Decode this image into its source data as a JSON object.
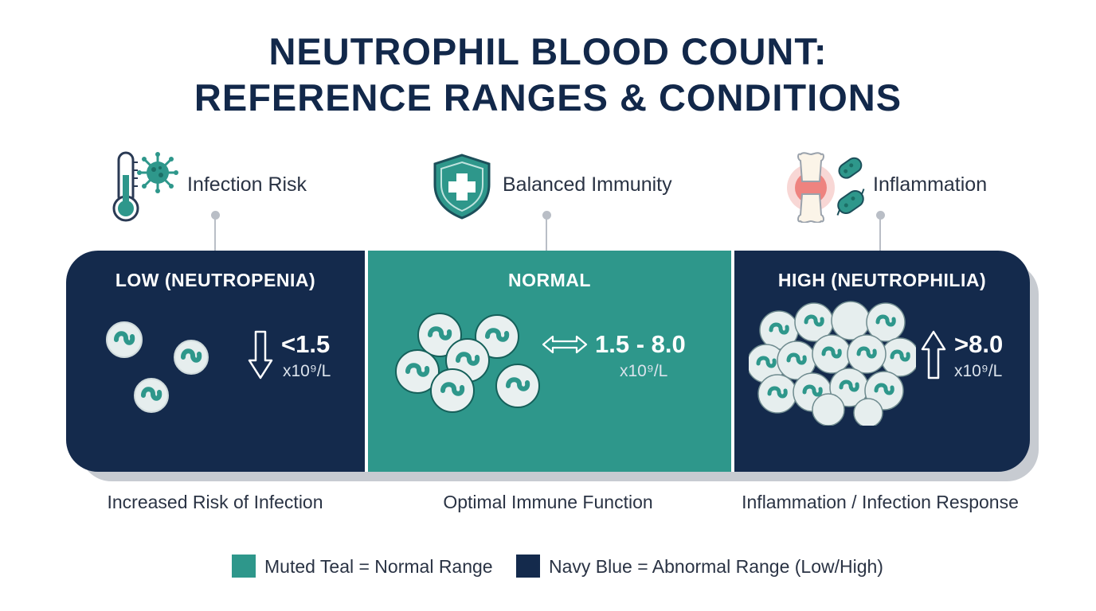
{
  "title": {
    "line1": "NEUTROPHIL BLOOD COUNT:",
    "line2": "REFERENCE RANGES & CONDITIONS"
  },
  "markers": [
    {
      "label": "Infection Risk",
      "icons": [
        "thermometer-icon",
        "virus-icon"
      ]
    },
    {
      "label": "Balanced Immunity",
      "icons": [
        "shield-plus-icon"
      ]
    },
    {
      "label": "Inflammation",
      "icons": [
        "inflamed-joint-icon",
        "bacteria-icon"
      ]
    }
  ],
  "segments": [
    {
      "title": "LOW (NEUTROPENIA)",
      "value": "<1.5",
      "unit": "x10⁹/L",
      "arrow": "down-arrow-icon",
      "color": "#142a4c",
      "caption": "Increased Risk of Infection"
    },
    {
      "title": "NORMAL",
      "value": "1.5 - 8.0",
      "unit": "x10⁹/L",
      "arrow": "double-arrow-icon",
      "color": "#2e978b",
      "caption": "Optimal Immune Function"
    },
    {
      "title": "HIGH (NEUTROPHILIA)",
      "value": ">8.0",
      "unit": "x10⁹/L",
      "arrow": "up-arrow-icon",
      "color": "#142a4c",
      "caption": "Inflammation / Infection Response"
    }
  ],
  "legend": [
    {
      "color": "#2e978b",
      "text": "Muted Teal = Normal Range"
    },
    {
      "color": "#142a4c",
      "text": "Navy Blue = Abnormal Range (Low/High)"
    }
  ]
}
